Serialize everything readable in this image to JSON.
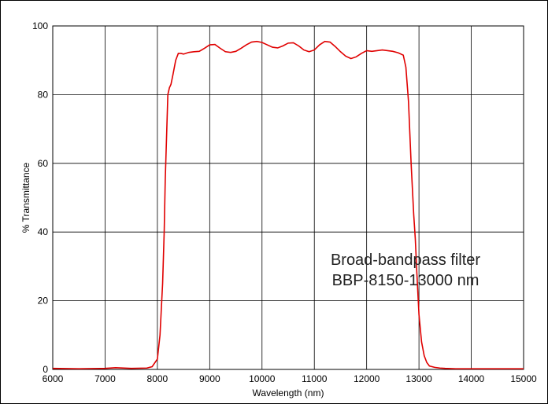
{
  "chart_data": {
    "type": "line",
    "xlabel": "Wavelength (nm)",
    "ylabel": "% Transmittance",
    "xlim": [
      6000,
      15000
    ],
    "ylim": [
      0,
      100
    ],
    "x_ticks": [
      6000,
      7000,
      8000,
      9000,
      10000,
      11000,
      12000,
      13000,
      14000,
      15000
    ],
    "y_ticks": [
      0,
      20,
      40,
      60,
      80,
      100
    ],
    "grid": true,
    "annotations": [
      {
        "lines": [
          "Broad-bandpass filter",
          "BBP-8150-13000 nm"
        ]
      }
    ],
    "series_color": "#e00000",
    "series": [
      {
        "x": [
          6000,
          6500,
          7000,
          7200,
          7500,
          7800,
          7900,
          8000,
          8050,
          8100,
          8130,
          8150,
          8180,
          8200,
          8230,
          8260,
          8300,
          8350,
          8400,
          8450,
          8500,
          8600,
          8700,
          8800,
          8900,
          9000,
          9100,
          9200,
          9300,
          9400,
          9500,
          9600,
          9700,
          9800,
          9900,
          10000,
          10100,
          10200,
          10300,
          10400,
          10500,
          10600,
          10700,
          10800,
          10900,
          11000,
          11100,
          11200,
          11300,
          11400,
          11500,
          11600,
          11700,
          11800,
          11900,
          12000,
          12100,
          12200,
          12300,
          12400,
          12500,
          12600,
          12700,
          12750,
          12800,
          12850,
          12900,
          12930,
          12960,
          13000,
          13050,
          13100,
          13150,
          13200,
          13300,
          13400,
          13500,
          13700,
          14000,
          14500,
          15000
        ],
        "y": [
          0.3,
          0.2,
          0.3,
          0.5,
          0.3,
          0.4,
          0.8,
          3,
          10,
          25,
          40,
          55,
          70,
          80,
          82,
          83,
          86,
          90,
          92,
          92,
          91.8,
          92.3,
          92.5,
          92.6,
          93.5,
          94.5,
          94.6,
          93.5,
          92.5,
          92.3,
          92.6,
          93.5,
          94.5,
          95.3,
          95.5,
          95.2,
          94.5,
          93.8,
          93.6,
          94.2,
          95,
          95.1,
          94.2,
          93,
          92.5,
          93,
          94.5,
          95.5,
          95.3,
          94,
          92.5,
          91.2,
          90.5,
          91,
          92,
          92.8,
          92.6,
          92.8,
          93,
          92.8,
          92.6,
          92.2,
          91.5,
          88,
          78,
          60,
          45,
          38,
          28,
          16,
          8,
          4,
          2,
          1,
          0.6,
          0.4,
          0.3,
          0.2,
          0.2,
          0.2,
          0.2
        ]
      }
    ]
  }
}
